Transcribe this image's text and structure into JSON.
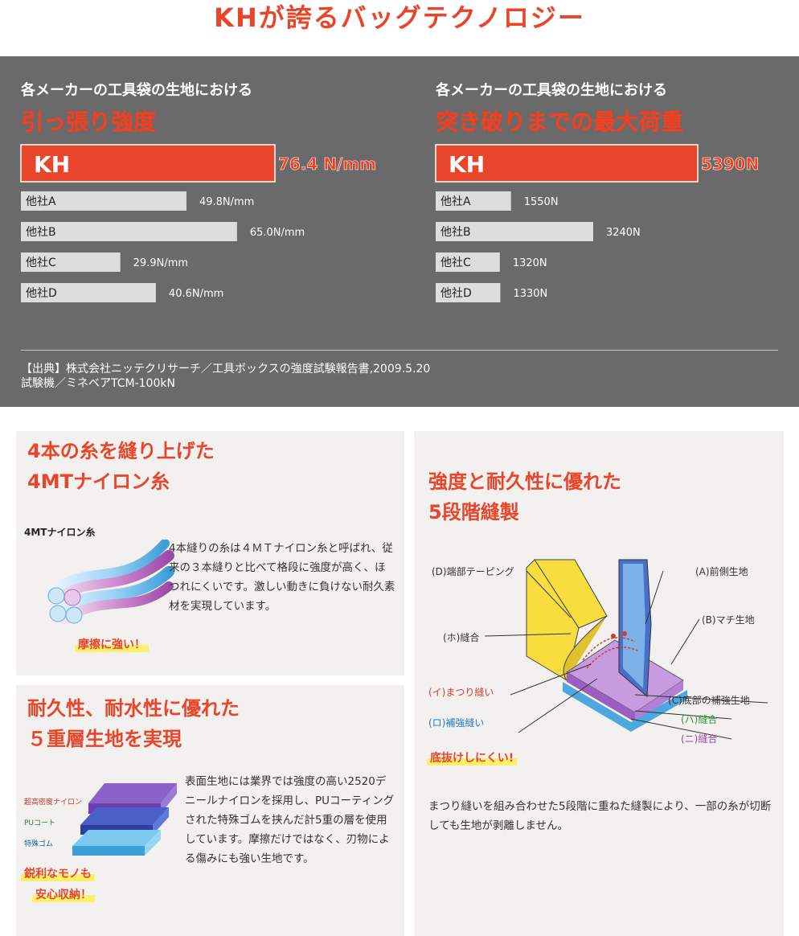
{
  "page": {
    "title": "KHが誇るバッグテクノロジー"
  },
  "colors": {
    "accent": "#e8452b",
    "panel": "#6b6a6a",
    "bar_gray": "#dddddd",
    "kh_bar": "#e8452b",
    "card_bg": "#f3f1ef"
  },
  "chart_data": [
    {
      "type": "bar",
      "subtitle": "各メーカーの工具袋の生地における",
      "title": "引っ張り強度",
      "categories": [
        "KH",
        "他社A",
        "他社B",
        "他社C",
        "他社D"
      ],
      "values": [
        76.4,
        49.8,
        65.0,
        29.9,
        40.6
      ],
      "value_labels": [
        "76.4 N/mm",
        "49.8N/mm",
        "65.0N/mm",
        "29.9N/mm",
        "40.6N/mm"
      ],
      "orientation": "horizontal"
    },
    {
      "type": "bar",
      "subtitle": "各メーカーの工具袋の生地における",
      "title": "突き破りまでの最大荷重",
      "categories": [
        "KH",
        "他社A",
        "他社B",
        "他社C",
        "他社D"
      ],
      "values": [
        5390,
        1550,
        3240,
        1320,
        1330
      ],
      "value_labels": [
        "5390N",
        "1550N",
        "3240N",
        "1320N",
        "1330N"
      ],
      "orientation": "horizontal"
    }
  ],
  "source": {
    "line1": "【出典】株式会社ニッテクリサーチ／工具ボックスの強度試験報告書,2009.5.20",
    "line2": "試験機／ミネベアTCM-100kN"
  },
  "card_thread": {
    "title": "4本の糸を縫り上げた\n4MTナイロン糸",
    "figure_label": "4MTナイロン糸",
    "text": "4本縫りの糸は４ＭＴナイロン糸と呼ばれ、従来の３本縫りと比べて格段に強度が高く、ほつれにくいです。激しい動きに負けない耐久素材を実現しています。",
    "highlight": "摩擦に強い！"
  },
  "card_layers": {
    "title": "耐久性、耐水性に優れた\n５重層生地を実現",
    "layer_labels": [
      "超高密度ナイロン",
      "PUコート",
      "特殊ゴム"
    ],
    "text": "表面生地には業界では強度の高い2520デニールナイロンを採用し、PUコーティングされた特殊ゴムを挟んだ計5重の層を使用しています。摩擦だけではなく、刃物による傷みにも強い生地です。",
    "highlight1": "鋭利なモノも",
    "highlight2": "安心収納！"
  },
  "card_stitch": {
    "title": "強度と耐久性に優れた\n5段階縫製",
    "labels": {
      "d": "(D)端部テーピング",
      "a": "(A)前側生地",
      "ho": "(ホ)縫合",
      "b": "(B)マチ生地",
      "i": "(イ)まつり縫い",
      "c": "(C)底部の補強生地",
      "ro": "(ロ)補強縫い",
      "ha": "(ハ)縫合",
      "ni": "(ニ)縫合"
    },
    "highlight": "底抜けしにくい!",
    "text": "まつり縫いを組み合わせた5段階に重ねた縫製により、一部の糸が切断しても生地が剥離しません。"
  }
}
